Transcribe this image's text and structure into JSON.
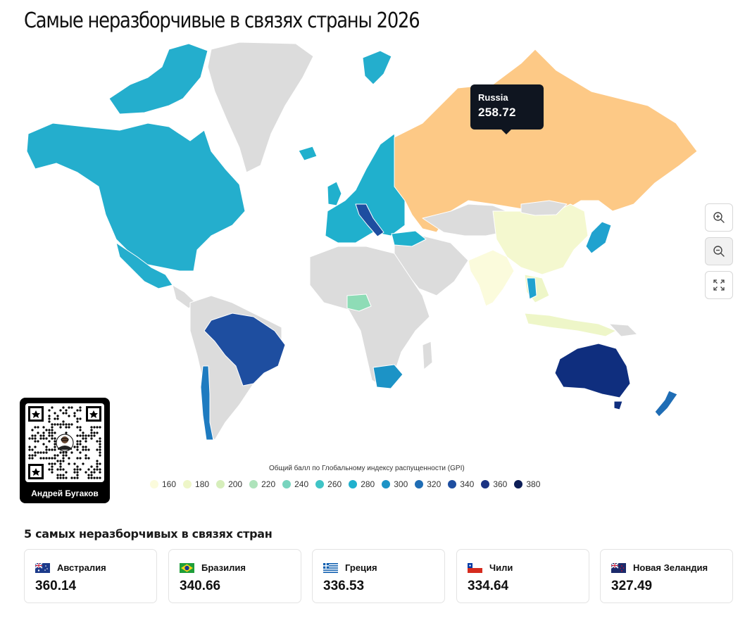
{
  "title": "Самые неразборчивые в связях страны 2026",
  "tooltip": {
    "country": "Russia",
    "value": "258.72"
  },
  "legend": {
    "title": "Общий балл по Глобальному индексу распущенности (GPI)",
    "items": [
      {
        "label": "160",
        "color": "#fbfbdc"
      },
      {
        "label": "180",
        "color": "#eef6c8"
      },
      {
        "label": "200",
        "color": "#d6eebb"
      },
      {
        "label": "220",
        "color": "#aee3bb"
      },
      {
        "label": "240",
        "color": "#78d4be"
      },
      {
        "label": "260",
        "color": "#3fc4c6"
      },
      {
        "label": "280",
        "color": "#20b0cd"
      },
      {
        "label": "300",
        "color": "#1c93c6"
      },
      {
        "label": "320",
        "color": "#1f6db5"
      },
      {
        "label": "340",
        "color": "#1e4ea0"
      },
      {
        "label": "360",
        "color": "#1b3383"
      },
      {
        "label": "380",
        "color": "#0c1d57"
      }
    ]
  },
  "map_colors": {
    "no_data": "#dcdcdc",
    "russia": "#fdc986",
    "north_america": "#24aecd",
    "greenland": "#dcdcdc",
    "brazil": "#1e4ea0",
    "australia": "#0f2e7e",
    "china": "#f4f8cf",
    "nigeria": "#8edcb6",
    "south_africa": "#1c93c6",
    "chile": "#1e7bc0",
    "new_zealand": "#1f6db5",
    "japan": "#20a2cf",
    "europe": "#20b0cd",
    "italy": "#1e4ea0",
    "se_asia": "#eef6c8",
    "india": "#fbfbdc",
    "indonesia": "#eef6c8"
  },
  "controls": {
    "zoom_in": "zoom-in-icon",
    "zoom_out": "zoom-out-icon",
    "fullscreen": "fullscreen-icon"
  },
  "author": {
    "name": "Андрей Бугаков"
  },
  "top5": {
    "title": "5 самых неразборчивых в связях стран",
    "items": [
      {
        "country": "Австралия",
        "value": "360.14",
        "flag": "australia-flag"
      },
      {
        "country": "Бразилия",
        "value": "340.66",
        "flag": "brazil-flag"
      },
      {
        "country": "Греция",
        "value": "336.53",
        "flag": "greece-flag"
      },
      {
        "country": "Чили",
        "value": "334.64",
        "flag": "chile-flag"
      },
      {
        "country": "Новая Зеландия",
        "value": "327.49",
        "flag": "new-zealand-flag"
      }
    ]
  }
}
